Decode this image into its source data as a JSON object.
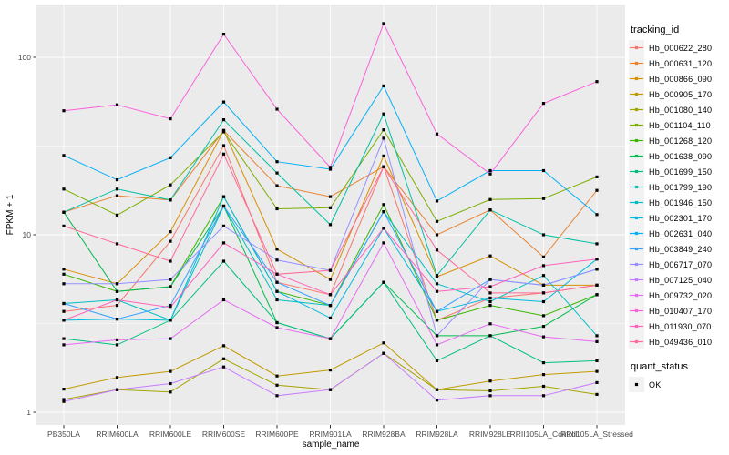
{
  "axes": {
    "x_title": "sample_name",
    "y_title": "FPKM + 1",
    "y_tick_labels": [
      "1",
      "10",
      "100"
    ]
  },
  "legend": {
    "tracking_title": "tracking_id",
    "quant_title": "quant_status",
    "quant_items": [
      {
        "label": "OK",
        "marker": "black-square",
        "color": "#000000"
      }
    ]
  },
  "chart_data": {
    "type": "line",
    "title": "",
    "xlabel": "sample_name",
    "ylabel": "FPKM + 1",
    "y_scale": "log10",
    "ylim": [
      0.9,
      180
    ],
    "y_major_ticks": [
      1,
      10,
      100
    ],
    "y_minor_gridlines": [
      3.1623,
      31.623
    ],
    "grid": true,
    "legend_position": "right",
    "panel_color": "#EBEBEB",
    "grid_color": "#FFFFFF",
    "key_color": "#F2F2F2",
    "marker": {
      "shape": "square",
      "color": "#000000",
      "size": 3.2
    },
    "categories": [
      "PB350LA",
      "RRIM600LA",
      "RRIM600LE",
      "RRIM600SE",
      "RRIM600PE",
      "RRIM901LA",
      "RRIM928BA",
      "RRIM928LA",
      "RRIM928LE",
      "RRII105LA_Control",
      "RRII105LA_Stressed"
    ],
    "series": [
      {
        "name": "Hb_000622_280",
        "color": "#F8766D",
        "values": [
          3.7,
          4.0,
          9.2,
          31.8,
          5.4,
          4.6,
          24.2,
          3.3,
          4.4,
          4.7,
          5.2
        ]
      },
      {
        "name": "Hb_000631_120",
        "color": "#EA8331",
        "values": [
          13.4,
          16.6,
          15.7,
          38.7,
          18.9,
          16.4,
          24.2,
          10.0,
          13.8,
          7.5,
          17.8
        ]
      },
      {
        "name": "Hb_000866_090",
        "color": "#D89000",
        "values": [
          6.4,
          5.3,
          10.4,
          38.7,
          8.3,
          5.6,
          27.8,
          5.8,
          7.6,
          5.2,
          5.2
        ]
      },
      {
        "name": "Hb_000905_170",
        "color": "#C09B00",
        "values": [
          1.35,
          1.57,
          1.7,
          2.37,
          1.6,
          1.73,
          2.46,
          1.34,
          1.5,
          1.63,
          1.7
        ]
      },
      {
        "name": "Hb_001080_140",
        "color": "#A3A500",
        "values": [
          1.18,
          1.34,
          1.3,
          2.0,
          1.42,
          1.34,
          2.15,
          1.34,
          1.32,
          1.4,
          1.26
        ]
      },
      {
        "name": "Hb_001104_110",
        "color": "#7CAE00",
        "values": [
          18.1,
          12.9,
          19.1,
          38.0,
          14.0,
          14.2,
          39.0,
          11.9,
          15.8,
          16.0,
          21.2
        ]
      },
      {
        "name": "Hb_001268_120",
        "color": "#39B600",
        "values": [
          6.0,
          4.8,
          5.1,
          16.4,
          4.8,
          4.0,
          14.8,
          3.3,
          4.0,
          3.5,
          4.6
        ]
      },
      {
        "name": "Hb_001638_090",
        "color": "#00BB4E",
        "values": [
          13.4,
          4.8,
          5.1,
          14.5,
          3.2,
          2.6,
          5.4,
          2.7,
          2.7,
          3.05,
          4.6
        ]
      },
      {
        "name": "Hb_001699_150",
        "color": "#00BF7D",
        "values": [
          2.6,
          2.4,
          3.3,
          7.1,
          3.2,
          2.6,
          5.4,
          1.95,
          2.7,
          1.9,
          1.95
        ]
      },
      {
        "name": "Hb_001799_190",
        "color": "#00C1A3",
        "values": [
          13.4,
          18.1,
          15.7,
          44.5,
          22.3,
          11.4,
          48.0,
          5.9,
          13.8,
          10.0,
          8.9
        ]
      },
      {
        "name": "Hb_001946_150",
        "color": "#00BFC4",
        "values": [
          4.1,
          4.3,
          3.3,
          14.5,
          4.3,
          4.0,
          13.5,
          5.3,
          4.2,
          5.9,
          2.7
        ]
      },
      {
        "name": "Hb_002301_170",
        "color": "#00BAE0",
        "values": [
          3.3,
          3.35,
          3.3,
          16.4,
          4.8,
          3.4,
          10.9,
          3.7,
          4.4,
          4.2,
          7.3
        ]
      },
      {
        "name": "Hb_002631_040",
        "color": "#00B0F6",
        "values": [
          28.0,
          20.4,
          27.2,
          56.0,
          25.8,
          23.4,
          69.0,
          15.5,
          23.0,
          23.0,
          13.0
        ]
      },
      {
        "name": "Hb_003849_240",
        "color": "#35A2FF",
        "values": [
          4.1,
          3.35,
          4.0,
          14.5,
          5.4,
          4.0,
          13.5,
          3.7,
          5.6,
          5.2,
          6.4
        ]
      },
      {
        "name": "Hb_006717_070",
        "color": "#9590FF",
        "values": [
          5.3,
          5.3,
          5.6,
          11.2,
          7.2,
          6.3,
          35.0,
          2.7,
          5.6,
          5.2,
          6.4
        ]
      },
      {
        "name": "Hb_007125_040",
        "color": "#C77CFF",
        "values": [
          1.15,
          1.34,
          1.45,
          1.8,
          1.24,
          1.34,
          2.15,
          1.17,
          1.24,
          1.24,
          1.47
        ]
      },
      {
        "name": "Hb_009732_020",
        "color": "#E76BF3",
        "values": [
          2.4,
          2.56,
          2.6,
          4.3,
          3.0,
          2.6,
          9.0,
          2.4,
          3.15,
          2.66,
          2.5
        ]
      },
      {
        "name": "Hb_010407_170",
        "color": "#FA62DB",
        "values": [
          50,
          54,
          45,
          135,
          51,
          24,
          155,
          37,
          22,
          55,
          73
        ]
      },
      {
        "name": "Hb_011930_070",
        "color": "#FF62BC",
        "values": [
          3.3,
          4.3,
          3.9,
          9.0,
          6.0,
          4.6,
          10.9,
          4.8,
          5.1,
          6.7,
          7.3
        ]
      },
      {
        "name": "Hb_049436_010",
        "color": "#FF6A98",
        "values": [
          11.2,
          8.9,
          7.1,
          28.5,
          6.0,
          6.3,
          24.2,
          8.2,
          4.7,
          4.7,
          5.2
        ]
      }
    ]
  }
}
